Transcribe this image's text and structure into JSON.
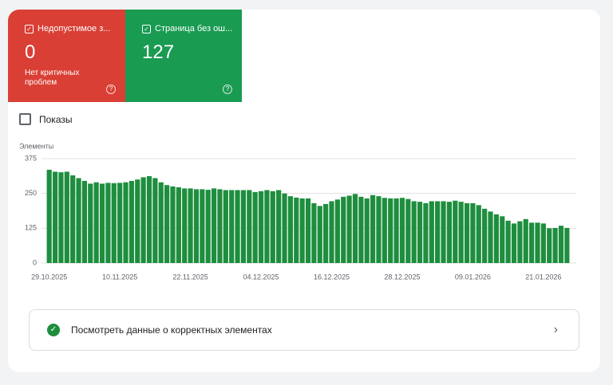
{
  "cards": [
    {
      "label": "Недопустимое з...",
      "value": 0,
      "note": "Нет критичных проблем"
    },
    {
      "label": "Страница без ош...",
      "value": 127
    }
  ],
  "toggle": {
    "label": "Показы"
  },
  "chart_data": {
    "type": "bar",
    "y_label": "Элементы",
    "color": "#1e8e3e",
    "grid": true,
    "ylim": [
      0,
      375
    ],
    "yticks": [
      0,
      125,
      250,
      375
    ],
    "categories": [
      "29.10.2025",
      null,
      null,
      null,
      null,
      null,
      null,
      null,
      null,
      null,
      null,
      null,
      "10.11.2025",
      null,
      null,
      null,
      null,
      null,
      null,
      null,
      null,
      null,
      null,
      null,
      "22.11.2025",
      null,
      null,
      null,
      null,
      null,
      null,
      null,
      null,
      null,
      null,
      null,
      "04.12.2025",
      null,
      null,
      null,
      null,
      null,
      null,
      null,
      null,
      null,
      null,
      null,
      "16.12.2025",
      null,
      null,
      null,
      null,
      null,
      null,
      null,
      null,
      null,
      null,
      null,
      "28.12.2025",
      null,
      null,
      null,
      null,
      null,
      null,
      null,
      null,
      null,
      null,
      null,
      "09.01.2026",
      null,
      null,
      null,
      null,
      null,
      null,
      null,
      null,
      null,
      null,
      null,
      "21.01.2026",
      null,
      null,
      null,
      null
    ],
    "values": [
      335,
      328,
      326,
      328,
      315,
      305,
      295,
      285,
      290,
      285,
      288,
      287,
      288,
      290,
      295,
      300,
      308,
      312,
      305,
      290,
      280,
      275,
      272,
      268,
      268,
      265,
      265,
      263,
      268,
      265,
      262,
      262,
      262,
      262,
      262,
      255,
      258,
      262,
      258,
      262,
      250,
      240,
      235,
      232,
      232,
      215,
      205,
      212,
      222,
      228,
      238,
      242,
      248,
      238,
      232,
      244,
      240,
      234,
      232,
      232,
      234,
      230,
      222,
      220,
      215,
      222,
      222,
      222,
      220,
      224,
      220,
      215,
      215,
      208,
      195,
      185,
      175,
      168,
      152,
      142,
      150,
      158,
      145,
      145,
      142,
      125,
      126,
      134,
      126
    ]
  },
  "link": {
    "label": "Посмотреть данные о корректных элементах"
  }
}
